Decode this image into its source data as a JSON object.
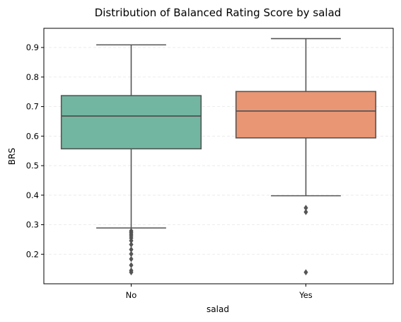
{
  "chart_data": {
    "type": "box",
    "title": "Distribution of Balanced Rating Score by salad",
    "xlabel": "salad",
    "ylabel": "BRS",
    "categories": [
      "No",
      "Yes"
    ],
    "ylim": [
      0.1,
      0.965
    ],
    "yticks": [
      0.2,
      0.3,
      0.4,
      0.5,
      0.6,
      0.7,
      0.8,
      0.9
    ],
    "ytick_labels": [
      "0.2",
      "0.3",
      "0.4",
      "0.5",
      "0.6",
      "0.7",
      "0.8",
      "0.9"
    ],
    "grid": "y-dashed",
    "boxes": [
      {
        "category": "No",
        "color": "#72b6a1",
        "whisker_low": 0.289,
        "q1": 0.557,
        "median": 0.668,
        "q3": 0.737,
        "whisker_high": 0.909,
        "outliers": [
          0.279,
          0.274,
          0.268,
          0.262,
          0.255,
          0.246,
          0.233,
          0.216,
          0.201,
          0.184,
          0.163,
          0.145,
          0.139
        ]
      },
      {
        "category": "Yes",
        "color": "#e99675",
        "whisker_low": 0.398,
        "q1": 0.594,
        "median": 0.685,
        "q3": 0.751,
        "whisker_high": 0.93,
        "outliers": [
          0.357,
          0.343,
          0.139
        ]
      }
    ],
    "colors": {
      "line": "#555555",
      "grid": "#e6e6e6",
      "axis": "#000000"
    }
  }
}
